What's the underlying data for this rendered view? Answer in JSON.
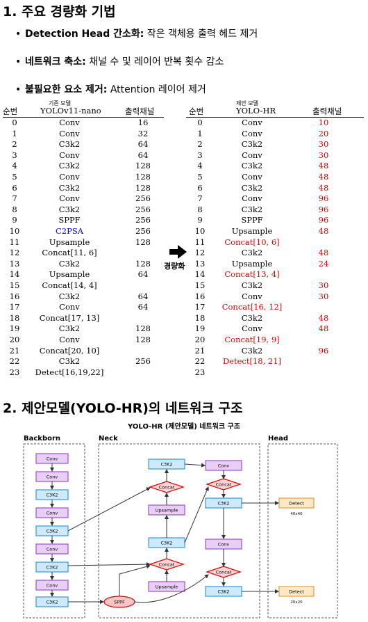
{
  "section1": {
    "title": "1. 주요 경량화 기법"
  },
  "bullets": [
    {
      "bold": "Detection Head 간소화:",
      "text": " 작은 객체용 출력 헤드 제거"
    },
    {
      "bold": "네트워크 축소:",
      "text": " 채널 수 및 레이어 반복 횟수 감소"
    },
    {
      "bold": "불필요한 요소 제거:",
      "text": " Attention 레이어 제거"
    }
  ],
  "left_table": {
    "caption": "기존 모델",
    "headers": [
      "순번",
      "YOLOv11-nano",
      "출력채널"
    ],
    "rows": [
      [
        "0",
        "Conv",
        "16"
      ],
      [
        "1",
        "Conv",
        "32"
      ],
      [
        "2",
        "C3k2",
        "64"
      ],
      [
        "3",
        "Conv",
        "64"
      ],
      [
        "4",
        "C3k2",
        "128"
      ],
      [
        "5",
        "Conv",
        "128"
      ],
      [
        "6",
        "C3k2",
        "128"
      ],
      [
        "7",
        "Conv",
        "256"
      ],
      [
        "8",
        "C3k2",
        "256"
      ],
      [
        "9",
        "SPPF",
        "256"
      ],
      [
        "10",
        "C2PSA",
        "256"
      ],
      [
        "11",
        "Upsample",
        "128"
      ],
      [
        "12",
        "Concat[11, 6]",
        ""
      ],
      [
        "13",
        "C3k2",
        "128"
      ],
      [
        "14",
        "Upsample",
        "64"
      ],
      [
        "15",
        "Concat[14, 4]",
        ""
      ],
      [
        "16",
        "C3k2",
        "64"
      ],
      [
        "17",
        "Conv",
        "64"
      ],
      [
        "18",
        "Concat[17, 13]",
        ""
      ],
      [
        "19",
        "C3k2",
        "128"
      ],
      [
        "20",
        "Conv",
        "128"
      ],
      [
        "21",
        "Concat[20, 10]",
        ""
      ],
      [
        "22",
        "C3k2",
        "256"
      ],
      [
        "23",
        "Detect[16,19,22]",
        ""
      ]
    ]
  },
  "right_table": {
    "caption": "제안 모델",
    "headers": [
      "순번",
      "YOLO-HR",
      "출력채널"
    ],
    "rows": [
      [
        "0",
        "Conv",
        "10"
      ],
      [
        "1",
        "Conv",
        "20"
      ],
      [
        "2",
        "C3k2",
        "30"
      ],
      [
        "3",
        "Conv",
        "30"
      ],
      [
        "4",
        "C3k2",
        "48"
      ],
      [
        "5",
        "Conv",
        "48"
      ],
      [
        "6",
        "C3k2",
        "48"
      ],
      [
        "7",
        "Conv",
        "96"
      ],
      [
        "8",
        "C3k2",
        "96"
      ],
      [
        "9",
        "SPPF",
        "96"
      ],
      [
        "10",
        "Upsample",
        "48"
      ],
      [
        "11",
        "Concat[10, 6]",
        ""
      ],
      [
        "12",
        "C3k2",
        "48"
      ],
      [
        "13",
        "Upsample",
        "24"
      ],
      [
        "14",
        "Concat[13, 4]",
        ""
      ],
      [
        "15",
        "C3k2",
        "30"
      ],
      [
        "16",
        "Conv",
        "30"
      ],
      [
        "17",
        "Concat[16, 12]",
        ""
      ],
      [
        "18",
        "C3k2",
        "48"
      ],
      [
        "19",
        "Conv",
        "48"
      ],
      [
        "20",
        "Concat[19, 9]",
        ""
      ],
      [
        "21",
        "C3k2",
        "96"
      ],
      [
        "22",
        "Detect[18, 21]",
        ""
      ],
      [
        "23",
        "",
        ""
      ]
    ]
  },
  "arrow_label": "경량화",
  "section2": {
    "title": "2. 제안모델(YOLO-HR)의 네트워크 구조"
  },
  "diagram": {
    "title": "YOLO-HR (제안모델) 네트워크 구조",
    "regions": [
      "Backborn",
      "Neck",
      "Head"
    ],
    "backbone": [
      "Conv",
      "Conv",
      "C3K2",
      "Conv",
      "C3K2",
      "Conv",
      "C3K2",
      "Conv",
      "C3K2"
    ],
    "sppf": "SPPF",
    "neck_left": [
      "C3K2",
      "Concat",
      "Upsample",
      "C3K2",
      "Concat",
      "Upsample"
    ],
    "neck_right": [
      "Conv",
      "Concat",
      "C3K2",
      "Conv",
      "Concat",
      "C3K2"
    ],
    "head": [
      {
        "label": "Detect",
        "size": "40x40"
      },
      {
        "label": "Detect",
        "size": "20x20"
      }
    ],
    "colors": {
      "conv": "#e8cff5",
      "c3k2": "#cde9fb",
      "concat": "#fbd5d5",
      "detect": "#fde8c8",
      "sppf": "#f7c5c5",
      "red": "#e00000"
    }
  }
}
